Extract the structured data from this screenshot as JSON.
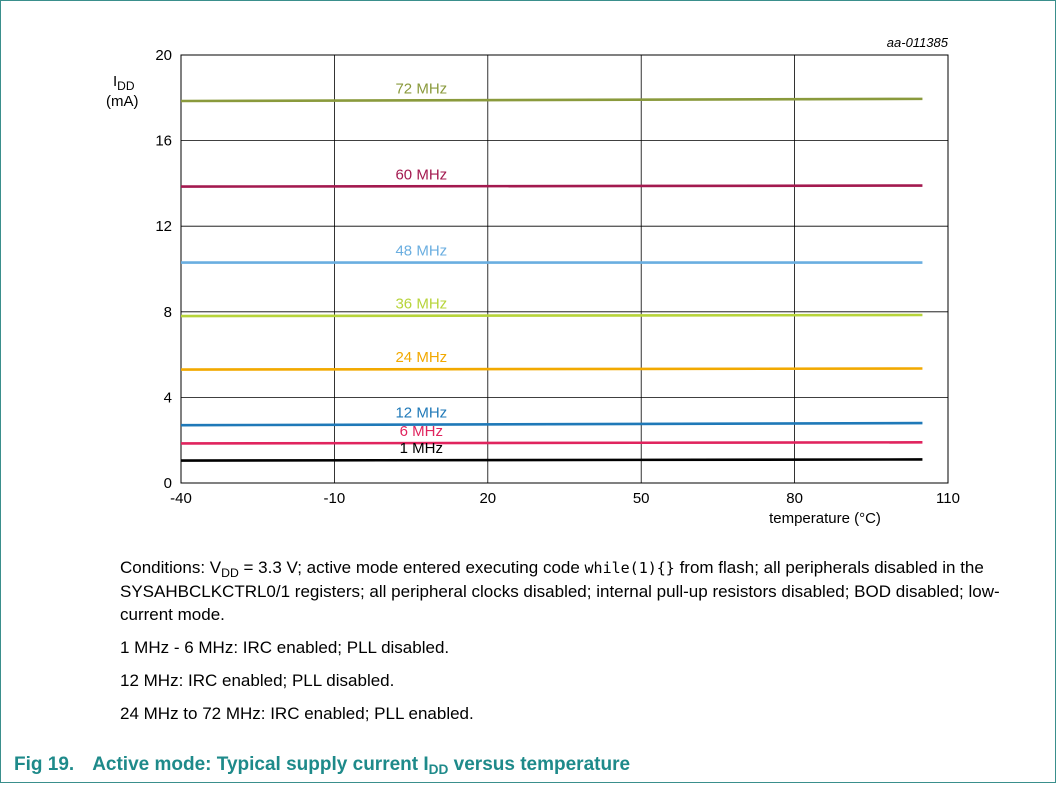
{
  "chart_data": {
    "type": "line",
    "watermark_id": "aa-011385",
    "ylabel": {
      "symbol": "I",
      "subscript": "DD",
      "unit": "(mA)"
    },
    "xlabel": "temperature (°C)",
    "xlim": [
      -40,
      110
    ],
    "ylim": [
      0,
      20
    ],
    "x_ticks": [
      -40,
      -10,
      20,
      50,
      80,
      110
    ],
    "y_ticks": [
      0,
      4,
      8,
      12,
      16,
      20
    ],
    "grid": true,
    "series": [
      {
        "name": "72 MHz",
        "color": "#8a9a3c",
        "x": [
          -40,
          105
        ],
        "y": [
          17.85,
          17.95
        ],
        "label_x": 7
      },
      {
        "name": "60 MHz",
        "color": "#a3194f",
        "x": [
          -40,
          105
        ],
        "y": [
          13.85,
          13.9
        ],
        "label_x": 7
      },
      {
        "name": "48 MHz",
        "color": "#6aaee0",
        "x": [
          -40,
          105
        ],
        "y": [
          10.3,
          10.3
        ],
        "label_x": 7
      },
      {
        "name": "36 MHz",
        "color": "#b7d43a",
        "x": [
          -40,
          105
        ],
        "y": [
          7.8,
          7.85
        ],
        "label_x": 7
      },
      {
        "name": "24 MHz",
        "color": "#f2a900",
        "x": [
          -40,
          105
        ],
        "y": [
          5.3,
          5.35
        ],
        "label_x": 7
      },
      {
        "name": "12 MHz",
        "color": "#1f79b8",
        "x": [
          -40,
          105
        ],
        "y": [
          2.7,
          2.8
        ],
        "label_x": 7
      },
      {
        "name": "6 MHz",
        "color": "#e0245e",
        "x": [
          -40,
          105
        ],
        "y": [
          1.85,
          1.9
        ],
        "label_x": 7
      },
      {
        "name": "1 MHz",
        "color": "#000000",
        "x": [
          -40,
          105
        ],
        "y": [
          1.05,
          1.1
        ],
        "label_x": 7
      }
    ]
  },
  "notes": {
    "conditions_prefix": "Conditions: V",
    "conditions_sub": "DD",
    "conditions_mid": " = 3.3 V; active mode entered executing code ",
    "conditions_code": "while(1){}",
    "conditions_rest": " from flash; all peripherals disabled in the SYSAHBCLKCTRL0/1 registers; all peripheral clocks disabled; internal pull-up resistors disabled; BOD disabled; low-current mode.",
    "line1": "1 MHz - 6 MHz: IRC enabled; PLL disabled.",
    "line2": "12 MHz: IRC enabled; PLL disabled.",
    "line3": "24 MHz to 72 MHz: IRC enabled; PLL enabled."
  },
  "caption": {
    "fig_num": "Fig 19.",
    "title_pre": "Active mode: Typical supply current I",
    "title_sub": "DD",
    "title_post": " versus temperature"
  }
}
